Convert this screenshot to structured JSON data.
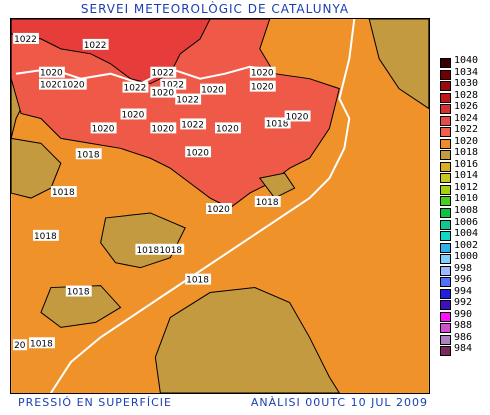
{
  "title": "SERVEI METEOROLÒGIC DE CATALUNYA",
  "footer_left": "PRESSIÓ EN SUPERFÍCIE",
  "footer_right": "ANÀLISI 00UTC 10 JUL 2009",
  "legend": [
    {
      "value": "1040",
      "color": "#3a0000"
    },
    {
      "value": "1034",
      "color": "#6e0000"
    },
    {
      "value": "1030",
      "color": "#9a0a0a"
    },
    {
      "value": "1028",
      "color": "#c01818"
    },
    {
      "value": "1026",
      "color": "#d83030"
    },
    {
      "value": "1024",
      "color": "#e84a4a"
    },
    {
      "value": "1022",
      "color": "#f06050"
    },
    {
      "value": "1020",
      "color": "#f08a2a"
    },
    {
      "value": "1018",
      "color": "#c49a40"
    },
    {
      "value": "1016",
      "color": "#d8b020"
    },
    {
      "value": "1014",
      "color": "#c8c820"
    },
    {
      "value": "1012",
      "color": "#a8d010"
    },
    {
      "value": "1010",
      "color": "#48d020"
    },
    {
      "value": "1008",
      "color": "#10c040"
    },
    {
      "value": "1006",
      "color": "#10c890"
    },
    {
      "value": "1004",
      "color": "#10d8c8"
    },
    {
      "value": "1002",
      "color": "#30b0e8"
    },
    {
      "value": "1000",
      "color": "#7fd0ff"
    },
    {
      "value": "998",
      "color": "#a0b8ff"
    },
    {
      "value": "996",
      "color": "#5070ff"
    },
    {
      "value": "994",
      "color": "#2020e0"
    },
    {
      "value": "992",
      "color": "#4010c0"
    },
    {
      "value": "990",
      "color": "#ff10ff"
    },
    {
      "value": "988",
      "color": "#d050d0"
    },
    {
      "value": "986",
      "color": "#b080c0"
    },
    {
      "value": "984",
      "color": "#7a2a5a"
    }
  ],
  "isobar_labels": [
    {
      "text": "1022"
    },
    {
      "text": "1022"
    },
    {
      "text": "1020"
    },
    {
      "text": "1020"
    },
    {
      "text": "1020"
    },
    {
      "text": "1022"
    },
    {
      "text": "1022"
    },
    {
      "text": "1022"
    },
    {
      "text": "1020"
    },
    {
      "text": "1020"
    },
    {
      "text": "1020"
    },
    {
      "text": "1020"
    },
    {
      "text": "1022"
    },
    {
      "text": "1020"
    },
    {
      "text": "1018"
    },
    {
      "text": "1020"
    },
    {
      "text": "1020"
    },
    {
      "text": "1020"
    },
    {
      "text": "1020"
    },
    {
      "text": "1018"
    },
    {
      "text": "1018"
    },
    {
      "text": "1018"
    },
    {
      "text": "1020"
    },
    {
      "text": "1018"
    },
    {
      "text": "1018"
    },
    {
      "text": "1018"
    },
    {
      "text": "1018"
    },
    {
      "text": "1018"
    },
    {
      "text": "1018"
    },
    {
      "text": "20"
    },
    {
      "text": "1020"
    },
    {
      "text": "1022"
    }
  ]
}
